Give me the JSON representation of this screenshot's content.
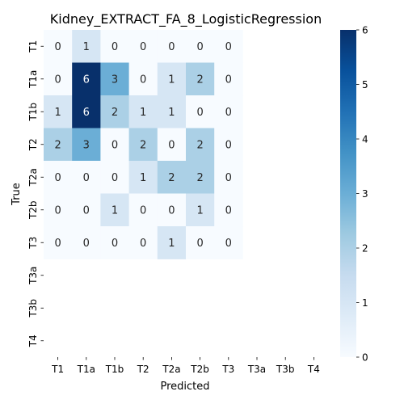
{
  "chart_data": {
    "type": "heatmap",
    "title": "Kidney_EXTRACT_FA_8_LogisticRegression",
    "xlabel": "Predicted",
    "ylabel": "True",
    "x_categories": [
      "T1",
      "T1a",
      "T1b",
      "T2",
      "T2a",
      "T2b",
      "T3",
      "T3a",
      "T3b",
      "T4"
    ],
    "y_categories": [
      "T1",
      "T1a",
      "T1b",
      "T2",
      "T2a",
      "T2b",
      "T3",
      "T3a",
      "T3b",
      "T4"
    ],
    "values": [
      [
        0,
        1,
        0,
        0,
        0,
        0,
        0,
        null,
        null,
        null
      ],
      [
        0,
        6,
        3,
        0,
        1,
        2,
        0,
        null,
        null,
        null
      ],
      [
        1,
        6,
        2,
        1,
        1,
        0,
        0,
        null,
        null,
        null
      ],
      [
        2,
        3,
        0,
        2,
        0,
        2,
        0,
        null,
        null,
        null
      ],
      [
        0,
        0,
        0,
        1,
        2,
        2,
        0,
        null,
        null,
        null
      ],
      [
        0,
        0,
        1,
        0,
        0,
        1,
        0,
        null,
        null,
        null
      ],
      [
        0,
        0,
        0,
        0,
        1,
        0,
        0,
        null,
        null,
        null
      ],
      [
        null,
        null,
        null,
        null,
        null,
        null,
        null,
        null,
        null,
        null
      ],
      [
        null,
        null,
        null,
        null,
        null,
        null,
        null,
        null,
        null,
        null
      ],
      [
        null,
        null,
        null,
        null,
        null,
        null,
        null,
        null,
        null,
        null
      ]
    ],
    "colorbar": {
      "min": 0,
      "max": 6,
      "ticks": [
        0,
        1,
        2,
        3,
        4,
        5,
        6
      ],
      "colormap": "Blues"
    },
    "legend": "colorbar-right"
  }
}
